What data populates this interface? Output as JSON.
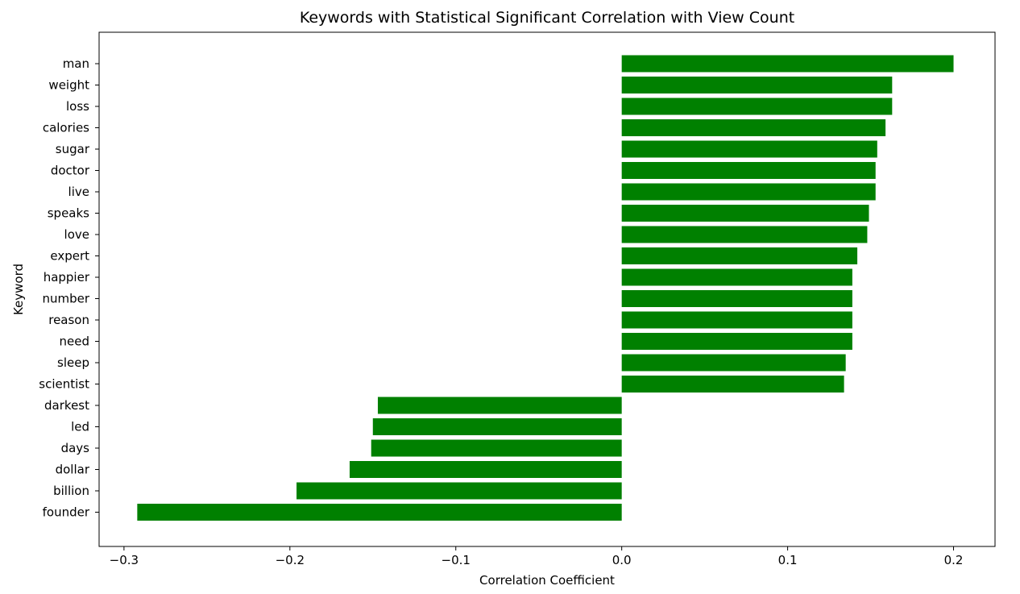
{
  "chart_data": {
    "type": "bar",
    "orientation": "horizontal",
    "title": "Keywords with Statistical Significant Correlation with View Count",
    "xlabel": "Correlation Coefficient",
    "ylabel": "Keyword",
    "xlim": [
      -0.315,
      0.225
    ],
    "xticks": [
      -0.3,
      -0.2,
      -0.1,
      0.0,
      0.1,
      0.2
    ],
    "xtick_labels": [
      "−0.3",
      "−0.2",
      "−0.1",
      "0.0",
      "0.1",
      "0.2"
    ],
    "grid": false,
    "bar_color": "#008000",
    "categories": [
      "man",
      "weight",
      "loss",
      "calories",
      "sugar",
      "doctor",
      "live",
      "speaks",
      "love",
      "expert",
      "happier",
      "number",
      "reason",
      "need",
      "sleep",
      "scientist",
      "darkest",
      "led",
      "days",
      "dollar",
      "billion",
      "founder"
    ],
    "values": [
      0.2,
      0.163,
      0.163,
      0.159,
      0.154,
      0.153,
      0.153,
      0.149,
      0.148,
      0.142,
      0.139,
      0.139,
      0.139,
      0.139,
      0.135,
      0.134,
      -0.147,
      -0.15,
      -0.151,
      -0.164,
      -0.196,
      -0.292
    ]
  }
}
